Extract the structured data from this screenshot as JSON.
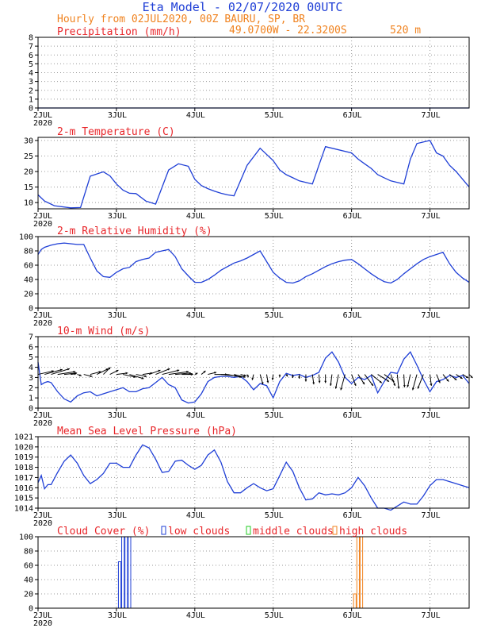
{
  "header": {
    "title": "Eta Model - 02/07/2020 00UTC",
    "subtitle": "Hourly from 02JUL2020, 00Z  BAURU, SP, BR",
    "coords": "49.0700W - 22.3200S",
    "elevation": "520  m"
  },
  "colors": {
    "title": "#1f3fd6",
    "subtitle": "#f0821e",
    "panel_title": "#e8262a",
    "line": "#1f3fd6",
    "low_clouds": "#1f3fd6",
    "middle_clouds": "#22cc22",
    "high_clouds": "#f0821e",
    "grid": "#9a9a9a"
  },
  "x_axis": {
    "ticks": [
      "2JUL",
      "3JUL",
      "4JUL",
      "5JUL",
      "6JUL",
      "7JUL"
    ],
    "year": "2020",
    "range_hours": [
      0,
      132
    ]
  },
  "chart_data": [
    {
      "type": "line",
      "title": "Precipitation (mm/h)",
      "ylim": [
        0,
        8
      ],
      "yticks": [
        "0",
        "1",
        "2",
        "3",
        "4",
        "5",
        "6",
        "7",
        "8"
      ],
      "show_year": true,
      "grid": true,
      "series": [
        {
          "x": [
            0,
            132
          ],
          "values": [
            0,
            0
          ]
        }
      ]
    },
    {
      "type": "line",
      "title": "2-m Temperature (C)",
      "ylim": [
        8,
        31
      ],
      "yticks": [
        "10",
        "15",
        "20",
        "25",
        "30"
      ],
      "show_year": true,
      "grid": true,
      "series": [
        {
          "x": [
            0,
            2,
            5,
            10,
            13,
            16,
            20,
            22,
            24,
            26,
            28,
            30,
            33,
            36,
            40,
            43,
            46,
            48,
            50,
            52,
            54,
            56,
            58,
            60,
            64,
            68,
            72,
            74,
            76,
            78,
            80,
            82,
            84,
            86,
            88,
            96,
            98,
            100,
            102,
            104,
            106,
            108,
            110,
            112,
            114,
            116,
            120,
            122,
            124,
            126,
            128,
            130,
            132
          ],
          "values": [
            12.5,
            10.5,
            9,
            8.3,
            8.4,
            18.5,
            19.9,
            18.6,
            16,
            14,
            13,
            12.9,
            10.5,
            9.5,
            20.5,
            22.5,
            21.7,
            17.5,
            15.5,
            14.5,
            13.7,
            13,
            12.5,
            12.2,
            22,
            27.5,
            23.5,
            20.5,
            19,
            18,
            17,
            16.5,
            16,
            22,
            28,
            26,
            24,
            22.5,
            21,
            19,
            18,
            17,
            16.5,
            16,
            24,
            29,
            30,
            26,
            25,
            22,
            20,
            17.5,
            15
          ]
        }
      ]
    },
    {
      "type": "line",
      "title": "2-m Relative Humidity (%)",
      "ylim": [
        0,
        100
      ],
      "yticks": [
        "0",
        "20",
        "40",
        "60",
        "80",
        "100"
      ],
      "show_year": true,
      "grid": true,
      "series": [
        {
          "x": [
            0,
            1,
            2,
            4,
            6,
            8,
            10,
            12,
            14,
            16,
            18,
            20,
            22,
            24,
            26,
            28,
            30,
            32,
            34,
            36,
            38,
            40,
            42,
            44,
            46,
            48,
            50,
            52,
            54,
            56,
            58,
            60,
            62,
            64,
            66,
            68,
            70,
            72,
            74,
            76,
            78,
            80,
            82,
            84,
            86,
            88,
            90,
            92,
            94,
            96,
            98,
            100,
            102,
            104,
            106,
            108,
            110,
            112,
            114,
            116,
            118,
            120,
            122,
            124,
            126,
            128,
            130,
            132
          ],
          "values": [
            75,
            82,
            85,
            88,
            90,
            91,
            90,
            89,
            89,
            70,
            52,
            44,
            43,
            50,
            55,
            57,
            65,
            68,
            70,
            78,
            80,
            82,
            72,
            55,
            45,
            36,
            36,
            40,
            46,
            53,
            58,
            63,
            66,
            70,
            75,
            80,
            65,
            50,
            42,
            36,
            35,
            38,
            44,
            48,
            53,
            58,
            62,
            65,
            67,
            68,
            62,
            55,
            48,
            42,
            37,
            35,
            40,
            48,
            55,
            62,
            68,
            72,
            75,
            78,
            62,
            50,
            42,
            36
          ]
        }
      ]
    },
    {
      "type": "line",
      "title": "10-m Wind (m/s)",
      "ylim": [
        0,
        7
      ],
      "yticks": [
        "0",
        "1",
        "2",
        "3",
        "4",
        "5",
        "6",
        "7"
      ],
      "show_year": true,
      "grid": true,
      "series": [
        {
          "x": [
            0,
            1,
            2,
            3,
            4,
            6,
            8,
            10,
            12,
            14,
            16,
            18,
            20,
            22,
            24,
            26,
            28,
            30,
            32,
            34,
            36,
            38,
            40,
            42,
            44,
            46,
            48,
            50,
            52,
            54,
            56,
            58,
            60,
            62,
            64,
            66,
            68,
            70,
            72,
            74,
            76,
            78,
            80,
            82,
            84,
            86,
            88,
            90,
            92,
            94,
            96,
            98,
            100,
            102,
            104,
            106,
            108,
            110,
            112,
            114,
            116,
            118,
            120,
            122,
            124,
            126,
            128,
            130,
            132
          ],
          "values": [
            4.5,
            2.3,
            2.5,
            2.6,
            2.5,
            1.6,
            0.9,
            0.6,
            1.2,
            1.5,
            1.6,
            1.2,
            1.4,
            1.6,
            1.8,
            2.0,
            1.6,
            1.6,
            1.9,
            2.0,
            2.5,
            3.0,
            2.3,
            2.0,
            0.8,
            0.5,
            0.6,
            1.4,
            2.6,
            3.0,
            3.1,
            3.1,
            3.0,
            3.1,
            2.6,
            1.8,
            2.4,
            2.2,
            1.0,
            2.6,
            3.4,
            3.2,
            3.3,
            3.0,
            3.2,
            3.5,
            4.9,
            5.5,
            4.5,
            3.0,
            2.4,
            3.0,
            2.8,
            3.2,
            1.5,
            2.6,
            3.5,
            3.4,
            4.8,
            5.5,
            4.2,
            2.8,
            1.6,
            2.6,
            2.8,
            3.2,
            3.0,
            3.2,
            2.4
          ]
        }
      ],
      "wind_arrows": {
        "x": [
          0,
          2,
          4,
          6,
          8,
          10,
          12,
          14,
          16,
          18,
          20,
          22,
          24,
          26,
          28,
          30,
          32,
          34,
          36,
          38,
          40,
          42,
          44,
          46,
          48,
          50,
          52,
          54,
          56,
          58,
          60,
          62,
          64,
          66,
          68,
          70,
          72,
          74,
          76,
          78,
          80,
          82,
          84,
          86,
          88,
          90,
          92,
          94,
          96,
          98,
          100,
          102,
          104,
          106,
          108,
          110,
          112,
          114,
          116,
          118,
          120,
          122,
          124,
          126,
          128,
          130,
          132
        ],
        "u": [
          2.2,
          2.5,
          2.6,
          2.5,
          1.8,
          0.8,
          0.6,
          1.2,
          1.5,
          1.6,
          1.0,
          1.2,
          1.6,
          1.8,
          2.0,
          1.5,
          1.4,
          1.6,
          2.0,
          2.4,
          2.8,
          2.2,
          1.6,
          0.6,
          0.4,
          0.6,
          1.2,
          1.8,
          2.2,
          2.0,
          1.6,
          0.8,
          0.2,
          -0.2,
          0.4,
          0.2,
          -0.1,
          0.0,
          0.2,
          0.0,
          0.0,
          0.0,
          0.2,
          0.1,
          0.0,
          -0.2,
          -0.4,
          -0.6,
          0.6,
          0.9,
          1.2,
          1.5,
          1.6,
          1.4,
          0.6,
          0.2,
          0.1,
          -0.4,
          -0.6,
          -0.8,
          0.2,
          0.5,
          0.8,
          1.0,
          0.9,
          0.8,
          0.5
        ],
        "v": [
          0.5,
          0.7,
          0.8,
          0.4,
          0.2,
          0.1,
          -0.2,
          -0.3,
          0.4,
          0.8,
          1.0,
          0.6,
          0.2,
          -0.4,
          -0.6,
          -0.3,
          0.2,
          0.6,
          0.8,
          0.6,
          0.4,
          0.2,
          0.0,
          0.1,
          0.2,
          0.5,
          0.3,
          0.0,
          -0.2,
          -0.4,
          -0.4,
          -0.2,
          -0.4,
          -0.8,
          -1.4,
          -1.2,
          -0.8,
          -0.4,
          -0.3,
          -0.5,
          -0.6,
          -1.0,
          -1.4,
          -1.2,
          -1.2,
          -1.6,
          -2.0,
          -2.2,
          -1.6,
          -1.4,
          -1.6,
          -1.2,
          -1.0,
          -1.0,
          -1.6,
          -2.0,
          -1.8,
          -1.8,
          -2.2,
          -2.0,
          -1.6,
          -1.2,
          -1.0,
          -0.8,
          -0.6,
          -0.5,
          -0.5
        ]
      }
    },
    {
      "type": "line",
      "title": "Mean Sea Level Pressure (hPa)",
      "ylim": [
        1014,
        1021
      ],
      "yticks": [
        "1014",
        "1015",
        "1016",
        "1017",
        "1018",
        "1019",
        "1020",
        "1021"
      ],
      "show_year": true,
      "grid": true,
      "series": [
        {
          "x": [
            0,
            1,
            2,
            3,
            4,
            6,
            8,
            10,
            12,
            14,
            16,
            18,
            20,
            22,
            24,
            26,
            28,
            30,
            32,
            34,
            36,
            38,
            40,
            42,
            44,
            46,
            48,
            50,
            52,
            54,
            56,
            58,
            60,
            62,
            64,
            66,
            68,
            70,
            72,
            74,
            76,
            78,
            80,
            82,
            84,
            86,
            88,
            90,
            92,
            94,
            96,
            98,
            100,
            102,
            104,
            106,
            108,
            110,
            112,
            114,
            116,
            118,
            120,
            122,
            124,
            126,
            128,
            130,
            132
          ],
          "values": [
            1016.5,
            1017.2,
            1015.9,
            1016.3,
            1016.3,
            1017.5,
            1018.6,
            1019.2,
            1018.4,
            1017.2,
            1016.4,
            1016.8,
            1017.4,
            1018.4,
            1018.4,
            1018.0,
            1018.0,
            1019.2,
            1020.2,
            1019.9,
            1018.8,
            1017.5,
            1017.6,
            1018.6,
            1018.7,
            1018.2,
            1017.8,
            1018.2,
            1019.2,
            1019.7,
            1018.5,
            1016.6,
            1015.5,
            1015.5,
            1016.0,
            1016.4,
            1016.0,
            1015.7,
            1015.9,
            1017.2,
            1018.5,
            1017.6,
            1016.0,
            1014.8,
            1014.9,
            1015.5,
            1015.3,
            1015.4,
            1015.3,
            1015.5,
            1016.0,
            1017.0,
            1016.2,
            1015.0,
            1014.0,
            1014.0,
            1013.8,
            1014.2,
            1014.6,
            1014.4,
            1014.4,
            1015.2,
            1016.2,
            1016.8,
            1016.8,
            1016.6,
            1016.4,
            1016.2,
            1016.0
          ]
        }
      ]
    },
    {
      "type": "bar",
      "title": "Cloud Cover (%)",
      "ylim": [
        0,
        100
      ],
      "yticks": [
        "0",
        "20",
        "40",
        "60",
        "80",
        "100"
      ],
      "show_year": true,
      "grid": true,
      "legend": [
        "low clouds",
        "middle clouds",
        "high clouds"
      ],
      "series": [
        {
          "name": "low clouds",
          "x": [
            25,
            26,
            27,
            28
          ],
          "values": [
            65,
            100,
            100,
            100
          ]
        },
        {
          "name": "middle clouds",
          "x": [],
          "values": []
        },
        {
          "name": "high clouds",
          "x": [
            97,
            98,
            99
          ],
          "values": [
            20,
            100,
            100
          ]
        }
      ]
    }
  ]
}
